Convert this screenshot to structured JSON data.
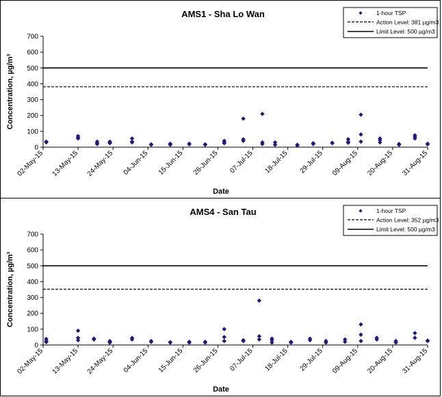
{
  "chart_data": [
    {
      "type": "scatter",
      "title": "AMS1 - Sha Lo Wan",
      "xlabel": "Date",
      "ylabel": "Concentration, µg/m³",
      "ylim": [
        0,
        700
      ],
      "yticks": [
        "0",
        "100",
        "200",
        "300",
        "400",
        "500",
        "600",
        "700"
      ],
      "xrange": [
        "2015-05-02",
        "2015-08-31"
      ],
      "xticks": [
        {
          "date": "2015-05-02",
          "label": "02-May-15"
        },
        {
          "date": "2015-05-13",
          "label": "13-May-15"
        },
        {
          "date": "2015-05-24",
          "label": "24-May-15"
        },
        {
          "date": "2015-06-04",
          "label": "04-Jun-15"
        },
        {
          "date": "2015-06-15",
          "label": "15-Jun-15"
        },
        {
          "date": "2015-06-26",
          "label": "26-Jun-15"
        },
        {
          "date": "2015-07-07",
          "label": "07-Jul-15"
        },
        {
          "date": "2015-07-18",
          "label": "18-Jul-15"
        },
        {
          "date": "2015-07-29",
          "label": "29-Jul-15"
        },
        {
          "date": "2015-08-09",
          "label": "09-Aug-15"
        },
        {
          "date": "2015-08-20",
          "label": "20-Aug-15"
        },
        {
          "date": "2015-08-31",
          "label": "31-Aug-15"
        }
      ],
      "legend": {
        "position": "top-right",
        "entries": [
          "1-hour TSP",
          "Action Level: 381 µg/m3",
          "Limit Level: 500 µg/m3"
        ]
      },
      "action_level": 381,
      "limit_level": 500,
      "colors": {
        "points": "#1f1a7a",
        "lines": "#000000"
      },
      "points": [
        {
          "x": "2015-05-03",
          "y": 35
        },
        {
          "x": "2015-05-03",
          "y": 30
        },
        {
          "x": "2015-05-13",
          "y": 70
        },
        {
          "x": "2015-05-13",
          "y": 60
        },
        {
          "x": "2015-05-13",
          "y": 55
        },
        {
          "x": "2015-05-19",
          "y": 35
        },
        {
          "x": "2015-05-19",
          "y": 25
        },
        {
          "x": "2015-05-19",
          "y": 20
        },
        {
          "x": "2015-05-23",
          "y": 35
        },
        {
          "x": "2015-05-23",
          "y": 30
        },
        {
          "x": "2015-05-23",
          "y": 25
        },
        {
          "x": "2015-05-30",
          "y": 55
        },
        {
          "x": "2015-05-30",
          "y": 35
        },
        {
          "x": "2015-05-30",
          "y": 30
        },
        {
          "x": "2015-06-05",
          "y": 18
        },
        {
          "x": "2015-06-05",
          "y": 15
        },
        {
          "x": "2015-06-11",
          "y": 22
        },
        {
          "x": "2015-06-11",
          "y": 18
        },
        {
          "x": "2015-06-11",
          "y": 15
        },
        {
          "x": "2015-06-17",
          "y": 22
        },
        {
          "x": "2015-06-17",
          "y": 18
        },
        {
          "x": "2015-06-22",
          "y": 18
        },
        {
          "x": "2015-06-22",
          "y": 15
        },
        {
          "x": "2015-06-28",
          "y": 40
        },
        {
          "x": "2015-06-28",
          "y": 30
        },
        {
          "x": "2015-06-28",
          "y": 25
        },
        {
          "x": "2015-07-04",
          "y": 180
        },
        {
          "x": "2015-07-04",
          "y": 50
        },
        {
          "x": "2015-07-04",
          "y": 40
        },
        {
          "x": "2015-07-10",
          "y": 210
        },
        {
          "x": "2015-07-10",
          "y": 30
        },
        {
          "x": "2015-07-10",
          "y": 20
        },
        {
          "x": "2015-07-14",
          "y": 30
        },
        {
          "x": "2015-07-14",
          "y": 15
        },
        {
          "x": "2015-07-21",
          "y": 15
        },
        {
          "x": "2015-07-21",
          "y": 10
        },
        {
          "x": "2015-07-26",
          "y": 25
        },
        {
          "x": "2015-07-26",
          "y": 20
        },
        {
          "x": "2015-08-01",
          "y": 28
        },
        {
          "x": "2015-08-01",
          "y": 25
        },
        {
          "x": "2015-08-06",
          "y": 50
        },
        {
          "x": "2015-08-06",
          "y": 35
        },
        {
          "x": "2015-08-06",
          "y": 28
        },
        {
          "x": "2015-08-10",
          "y": 205
        },
        {
          "x": "2015-08-10",
          "y": 80
        },
        {
          "x": "2015-08-10",
          "y": 35
        },
        {
          "x": "2015-08-16",
          "y": 55
        },
        {
          "x": "2015-08-16",
          "y": 45
        },
        {
          "x": "2015-08-16",
          "y": 30
        },
        {
          "x": "2015-08-22",
          "y": 20
        },
        {
          "x": "2015-08-22",
          "y": 15
        },
        {
          "x": "2015-08-27",
          "y": 75
        },
        {
          "x": "2015-08-27",
          "y": 65
        },
        {
          "x": "2015-08-27",
          "y": 55
        },
        {
          "x": "2015-08-31",
          "y": 22
        },
        {
          "x": "2015-08-31",
          "y": 18
        }
      ]
    },
    {
      "type": "scatter",
      "title": "AMS4 - San Tau",
      "xlabel": "Date",
      "ylabel": "Concentration, µg/m³",
      "ylim": [
        0,
        700
      ],
      "yticks": [
        "0",
        "100",
        "200",
        "300",
        "400",
        "500",
        "600",
        "700"
      ],
      "xrange": [
        "2015-05-02",
        "2015-08-31"
      ],
      "xticks": [
        {
          "date": "2015-05-02",
          "label": "02-May-15"
        },
        {
          "date": "2015-05-13",
          "label": "13-May-15"
        },
        {
          "date": "2015-05-24",
          "label": "24-May-15"
        },
        {
          "date": "2015-06-04",
          "label": "04-Jun-15"
        },
        {
          "date": "2015-06-15",
          "label": "15-Jun-15"
        },
        {
          "date": "2015-06-26",
          "label": "26-Jun-15"
        },
        {
          "date": "2015-07-07",
          "label": "07-Jul-15"
        },
        {
          "date": "2015-07-18",
          "label": "18-Jul-15"
        },
        {
          "date": "2015-07-29",
          "label": "29-Jul-15"
        },
        {
          "date": "2015-08-09",
          "label": "09-Aug-15"
        },
        {
          "date": "2015-08-20",
          "label": "20-Aug-15"
        },
        {
          "date": "2015-08-31",
          "label": "31-Aug-15"
        }
      ],
      "legend": {
        "position": "top-right",
        "entries": [
          "1-hour TSP",
          "Action Level: 352 µg/m3",
          "Limit Level: 500 µg/m3"
        ]
      },
      "action_level": 352,
      "limit_level": 500,
      "colors": {
        "points": "#1f1a7a",
        "lines": "#000000"
      },
      "points": [
        {
          "x": "2015-05-03",
          "y": 38
        },
        {
          "x": "2015-05-03",
          "y": 25
        },
        {
          "x": "2015-05-03",
          "y": 18
        },
        {
          "x": "2015-05-13",
          "y": 90
        },
        {
          "x": "2015-05-13",
          "y": 45
        },
        {
          "x": "2015-05-13",
          "y": 30
        },
        {
          "x": "2015-05-18",
          "y": 40
        },
        {
          "x": "2015-05-18",
          "y": 35
        },
        {
          "x": "2015-05-23",
          "y": 25
        },
        {
          "x": "2015-05-23",
          "y": 20
        },
        {
          "x": "2015-05-23",
          "y": 15
        },
        {
          "x": "2015-05-30",
          "y": 45
        },
        {
          "x": "2015-05-30",
          "y": 35
        },
        {
          "x": "2015-06-05",
          "y": 25
        },
        {
          "x": "2015-06-05",
          "y": 20
        },
        {
          "x": "2015-06-11",
          "y": 18
        },
        {
          "x": "2015-06-11",
          "y": 15
        },
        {
          "x": "2015-06-17",
          "y": 20
        },
        {
          "x": "2015-06-17",
          "y": 15
        },
        {
          "x": "2015-06-22",
          "y": 20
        },
        {
          "x": "2015-06-22",
          "y": 15
        },
        {
          "x": "2015-06-28",
          "y": 100
        },
        {
          "x": "2015-06-28",
          "y": 50
        },
        {
          "x": "2015-06-28",
          "y": 25
        },
        {
          "x": "2015-07-04",
          "y": 30
        },
        {
          "x": "2015-07-04",
          "y": 25
        },
        {
          "x": "2015-07-09",
          "y": 280
        },
        {
          "x": "2015-07-09",
          "y": 55
        },
        {
          "x": "2015-07-09",
          "y": 35
        },
        {
          "x": "2015-07-13",
          "y": 40
        },
        {
          "x": "2015-07-13",
          "y": 30
        },
        {
          "x": "2015-07-13",
          "y": 15
        },
        {
          "x": "2015-07-19",
          "y": 20
        },
        {
          "x": "2015-07-19",
          "y": 15
        },
        {
          "x": "2015-07-25",
          "y": 40
        },
        {
          "x": "2015-07-25",
          "y": 30
        },
        {
          "x": "2015-07-30",
          "y": 25
        },
        {
          "x": "2015-07-30",
          "y": 15
        },
        {
          "x": "2015-08-05",
          "y": 35
        },
        {
          "x": "2015-08-05",
          "y": 20
        },
        {
          "x": "2015-08-10",
          "y": 130
        },
        {
          "x": "2015-08-10",
          "y": 65
        },
        {
          "x": "2015-08-10",
          "y": 25
        },
        {
          "x": "2015-08-15",
          "y": 45
        },
        {
          "x": "2015-08-15",
          "y": 35
        },
        {
          "x": "2015-08-21",
          "y": 25
        },
        {
          "x": "2015-08-21",
          "y": 15
        },
        {
          "x": "2015-08-27",
          "y": 75
        },
        {
          "x": "2015-08-27",
          "y": 45
        },
        {
          "x": "2015-08-31",
          "y": 28
        },
        {
          "x": "2015-08-31",
          "y": 25
        }
      ]
    }
  ]
}
